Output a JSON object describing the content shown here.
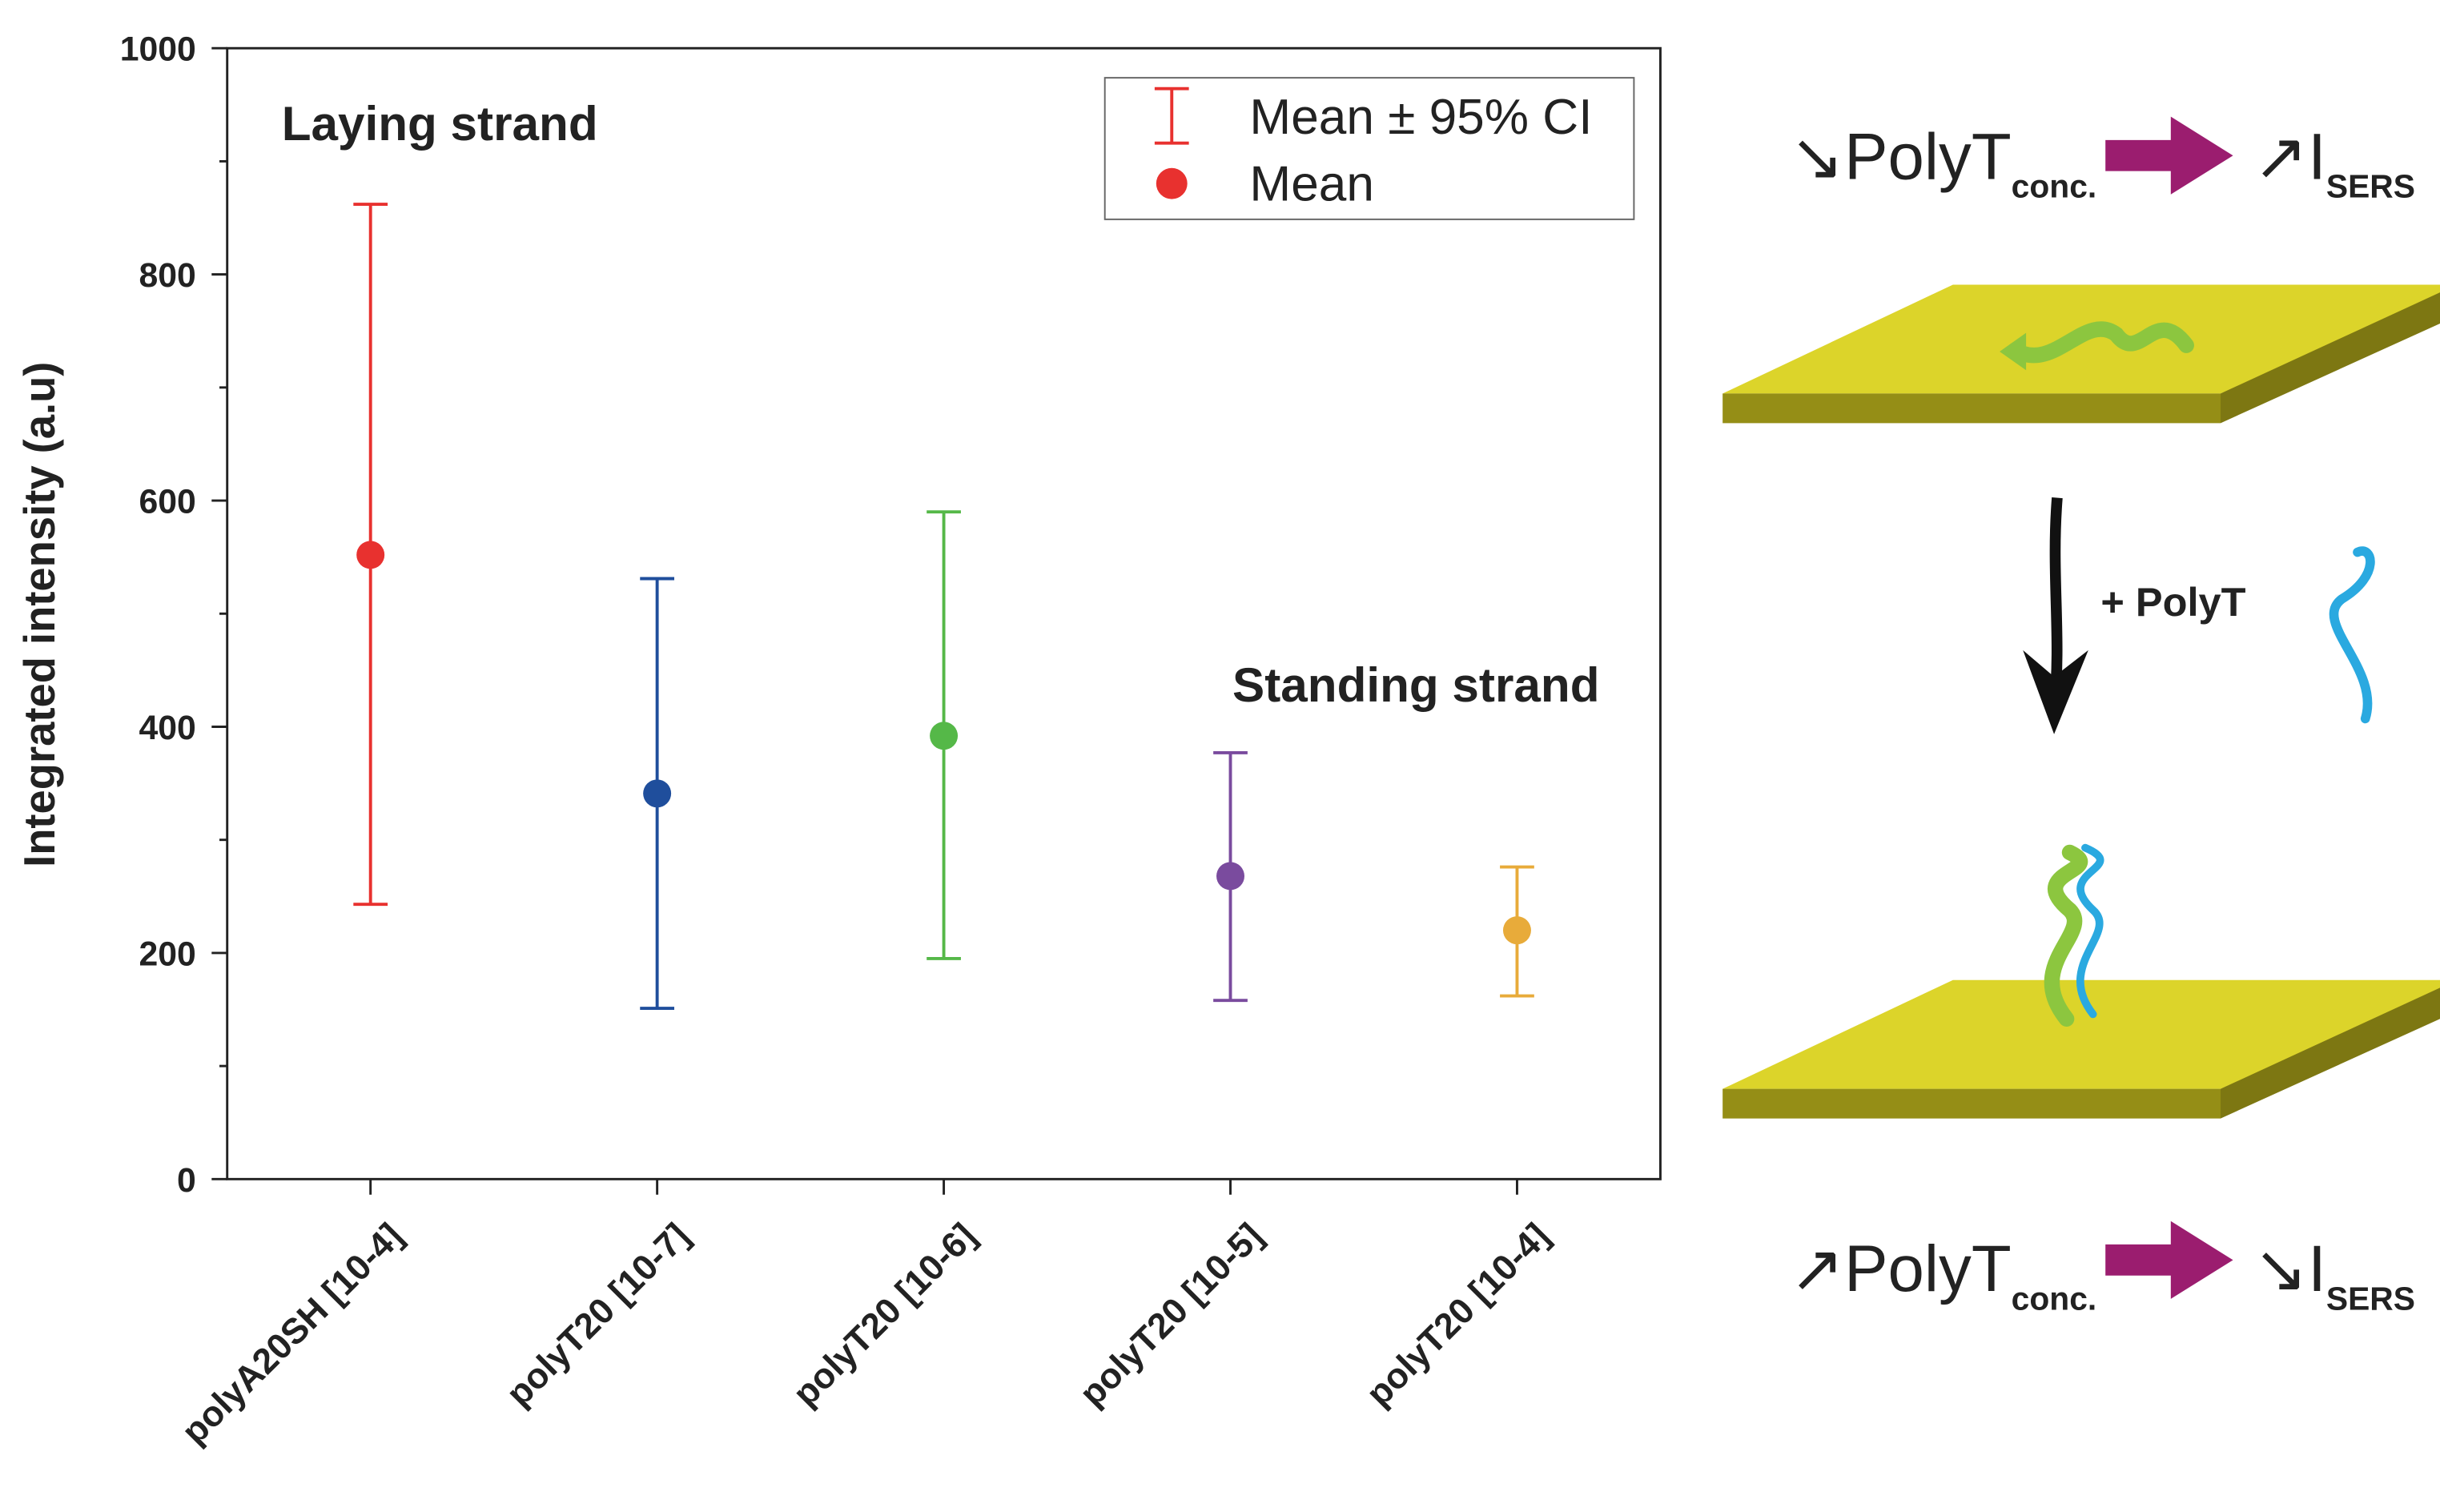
{
  "chart_data": {
    "type": "errorbar",
    "y_label": "Integrated intensity (a.u)",
    "categories": [
      "polyA20SH [10-4]",
      "polyT20 [10-7]",
      "polyT20 [10-6]",
      "polyT20 [10-5]",
      "polyT20 [10-4]"
    ],
    "values": [
      552,
      341,
      392,
      268,
      220
    ],
    "lower": [
      243,
      151,
      195,
      158,
      162
    ],
    "upper": [
      862,
      531,
      590,
      377,
      276
    ],
    "colors": [
      "#e8312f",
      "#1f4e9c",
      "#55b848",
      "#7a4b9e",
      "#e8ab3a"
    ],
    "ylim": [
      0,
      1000
    ],
    "yticks": [
      0,
      200,
      400,
      600,
      800,
      1000
    ],
    "annotations": [
      "Laying strand",
      "Standing strand"
    ],
    "legend_entries": [
      "Mean ± 95% CI",
      "Mean"
    ],
    "legend_position": "upper right"
  },
  "diagram": {
    "top": {
      "concentration": "↘PolyT",
      "concentration_sub": "conc.",
      "intensity": "↗I",
      "intensity_sub": "SERS"
    },
    "step": "+ PolyT",
    "bottom": {
      "concentration": "↗PolyT",
      "concentration_sub": "conc.",
      "intensity": "↘I",
      "intensity_sub": "SERS"
    }
  }
}
